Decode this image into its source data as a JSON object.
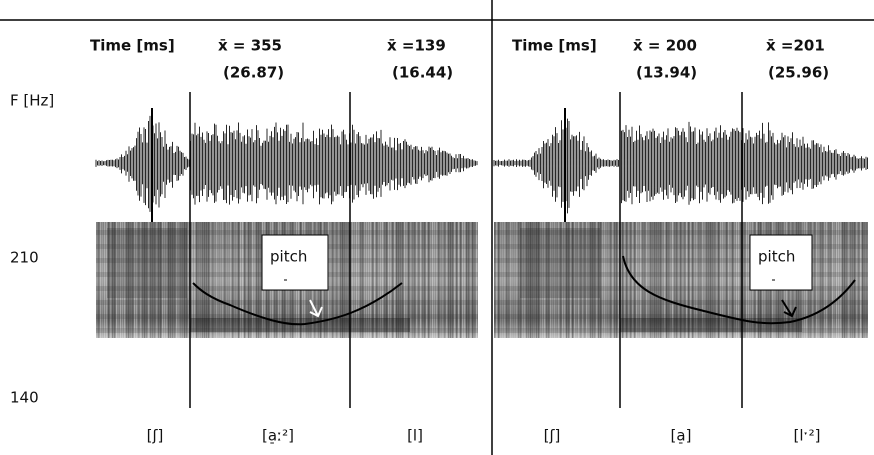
{
  "header": {
    "left": {
      "time_label": "Time [ms]",
      "columns": [
        {
          "mean": "x̄ = 355",
          "sd": "(26.87)"
        },
        {
          "mean": "x̄ =139",
          "sd": "(16.44)"
        }
      ]
    },
    "right": {
      "time_label": "Time [ms]",
      "columns": [
        {
          "mean": "x̄ = 200",
          "sd": "(13.94)"
        },
        {
          "mean": "x̄ =201",
          "sd": "(25.96)"
        }
      ]
    }
  },
  "axis": {
    "label": "F [Hz]",
    "ticks": [
      "210",
      "140"
    ]
  },
  "panels": [
    {
      "callout": "pitch",
      "segments": [
        "[ʃ]",
        "[a̠ː²]",
        "[l]"
      ]
    },
    {
      "callout": "pitch",
      "segments": [
        "[ʃ]",
        "[a̠]",
        "[lˑ²]"
      ]
    }
  ]
}
